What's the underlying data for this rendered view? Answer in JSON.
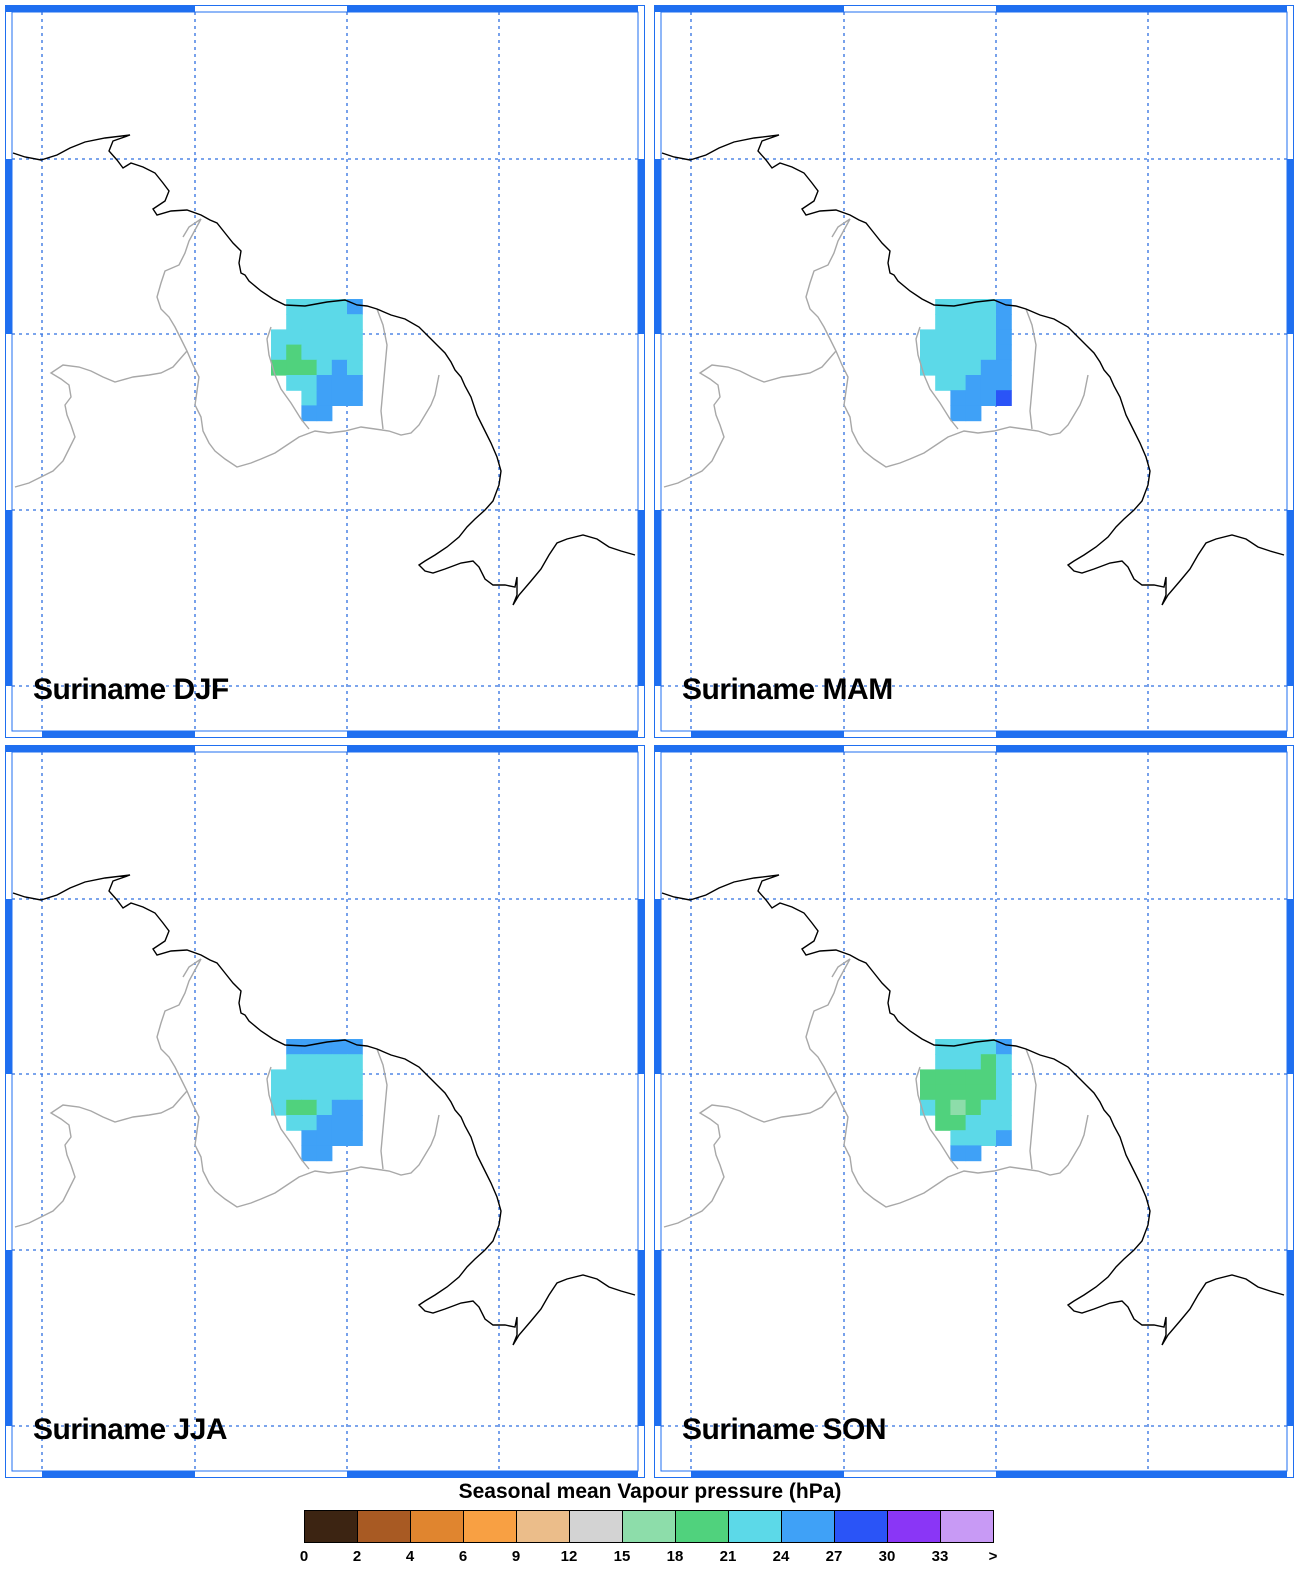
{
  "panels": [
    {
      "title": "Suriname DJF",
      "season": "DJF",
      "grid": [
        [
          0,
          0,
          0,
          0,
          0,
          0,
          0
        ],
        [
          0,
          0,
          0,
          0,
          0,
          0,
          0
        ],
        [
          0,
          0,
          0,
          0,
          0,
          0,
          0
        ],
        [
          0,
          0,
          0,
          0,
          0,
          0,
          0
        ],
        [
          0,
          0,
          0,
          0,
          0,
          0,
          0
        ]
      ]
    },
    {
      "title": "Suriname MAM",
      "season": "MAM"
    },
    {
      "title": "Suriname JJA",
      "season": "JJA"
    },
    {
      "title": "Suriname SON",
      "season": "SON"
    }
  ],
  "legend": {
    "title": "Seasonal mean Vapour pressure (hPa)",
    "ticks": [
      "0",
      "2",
      "4",
      "6",
      "9",
      "12",
      "15",
      "18",
      "21",
      "24",
      "27",
      "30",
      "33",
      ">"
    ],
    "colors": [
      "#3c2412",
      "#a85a23",
      "#e0852f",
      "#f8a043",
      "#ebbd8a",
      "#d3d3d3",
      "#8dddaa",
      "#50d27d",
      "#5cd9e8",
      "#3fa1f7",
      "#2a54f7",
      "#8a36f6",
      "#c89af5"
    ]
  },
  "colors": {
    "frame_blue": "#1f6ff0",
    "grid_blue": "#2f6fe0",
    "coast": "#000000",
    "border": "#a8a8a8"
  },
  "map_data": {
    "DJF": [
      [
        null,
        "#5cd9e8",
        "#5cd9e8",
        "#5cd9e8",
        "#5cd9e8",
        "#3fa1f7"
      ],
      [
        null,
        "#5cd9e8",
        "#5cd9e8",
        "#5cd9e8",
        "#5cd9e8",
        "#5cd9e8"
      ],
      [
        "#5cd9e8",
        "#5cd9e8",
        "#5cd9e8",
        "#5cd9e8",
        "#5cd9e8",
        "#5cd9e8"
      ],
      [
        "#5cd9e8",
        "#50d27d",
        "#5cd9e8",
        "#5cd9e8",
        "#5cd9e8",
        "#5cd9e8"
      ],
      [
        "#50d27d",
        "#50d27d",
        "#50d27d",
        "#5cd9e8",
        "#3fa1f7",
        "#5cd9e8"
      ],
      [
        null,
        "#5cd9e8",
        "#5cd9e8",
        "#3fa1f7",
        "#3fa1f7",
        "#3fa1f7"
      ],
      [
        null,
        null,
        "#5cd9e8",
        "#3fa1f7",
        "#3fa1f7",
        "#3fa1f7"
      ],
      [
        null,
        null,
        "#3fa1f7",
        "#3fa1f7",
        null,
        null
      ]
    ],
    "MAM": [
      [
        null,
        "#5cd9e8",
        "#5cd9e8",
        "#5cd9e8",
        "#5cd9e8",
        "#3fa1f7"
      ],
      [
        null,
        "#5cd9e8",
        "#5cd9e8",
        "#5cd9e8",
        "#5cd9e8",
        "#3fa1f7"
      ],
      [
        "#5cd9e8",
        "#5cd9e8",
        "#5cd9e8",
        "#5cd9e8",
        "#5cd9e8",
        "#3fa1f7"
      ],
      [
        "#5cd9e8",
        "#5cd9e8",
        "#5cd9e8",
        "#5cd9e8",
        "#5cd9e8",
        "#3fa1f7"
      ],
      [
        "#5cd9e8",
        "#5cd9e8",
        "#5cd9e8",
        "#5cd9e8",
        "#3fa1f7",
        "#3fa1f7"
      ],
      [
        null,
        "#5cd9e8",
        "#5cd9e8",
        "#3fa1f7",
        "#3fa1f7",
        "#3fa1f7"
      ],
      [
        null,
        null,
        "#3fa1f7",
        "#3fa1f7",
        "#3fa1f7",
        "#2a54f7"
      ],
      [
        null,
        null,
        "#3fa1f7",
        "#3fa1f7",
        null,
        null
      ]
    ],
    "JJA": [
      [
        null,
        "#3fa1f7",
        "#3fa1f7",
        "#3fa1f7",
        "#3fa1f7",
        "#3fa1f7"
      ],
      [
        null,
        "#5cd9e8",
        "#5cd9e8",
        "#5cd9e8",
        "#5cd9e8",
        "#5cd9e8"
      ],
      [
        "#5cd9e8",
        "#5cd9e8",
        "#5cd9e8",
        "#5cd9e8",
        "#5cd9e8",
        "#5cd9e8"
      ],
      [
        "#5cd9e8",
        "#5cd9e8",
        "#5cd9e8",
        "#5cd9e8",
        "#5cd9e8",
        "#5cd9e8"
      ],
      [
        "#5cd9e8",
        "#50d27d",
        "#50d27d",
        "#5cd9e8",
        "#3fa1f7",
        "#3fa1f7"
      ],
      [
        null,
        "#5cd9e8",
        "#5cd9e8",
        "#3fa1f7",
        "#3fa1f7",
        "#3fa1f7"
      ],
      [
        null,
        null,
        "#3fa1f7",
        "#3fa1f7",
        "#3fa1f7",
        "#3fa1f7"
      ],
      [
        null,
        null,
        "#3fa1f7",
        "#3fa1f7",
        null,
        null
      ]
    ],
    "SON": [
      [
        null,
        "#5cd9e8",
        "#5cd9e8",
        "#5cd9e8",
        "#5cd9e8",
        "#3fa1f7"
      ],
      [
        null,
        "#5cd9e8",
        "#5cd9e8",
        "#5cd9e8",
        "#50d27d",
        "#5cd9e8"
      ],
      [
        "#50d27d",
        "#50d27d",
        "#50d27d",
        "#50d27d",
        "#50d27d",
        "#5cd9e8"
      ],
      [
        "#50d27d",
        "#50d27d",
        "#50d27d",
        "#50d27d",
        "#50d27d",
        "#5cd9e8"
      ],
      [
        "#5cd9e8",
        "#50d27d",
        "#8dddaa",
        "#50d27d",
        "#5cd9e8",
        "#5cd9e8"
      ],
      [
        null,
        "#50d27d",
        "#50d27d",
        "#5cd9e8",
        "#5cd9e8",
        "#5cd9e8"
      ],
      [
        null,
        null,
        "#5cd9e8",
        "#5cd9e8",
        "#5cd9e8",
        "#3fa1f7"
      ],
      [
        null,
        null,
        "#3fa1f7",
        "#3fa1f7",
        null,
        null
      ]
    ]
  }
}
